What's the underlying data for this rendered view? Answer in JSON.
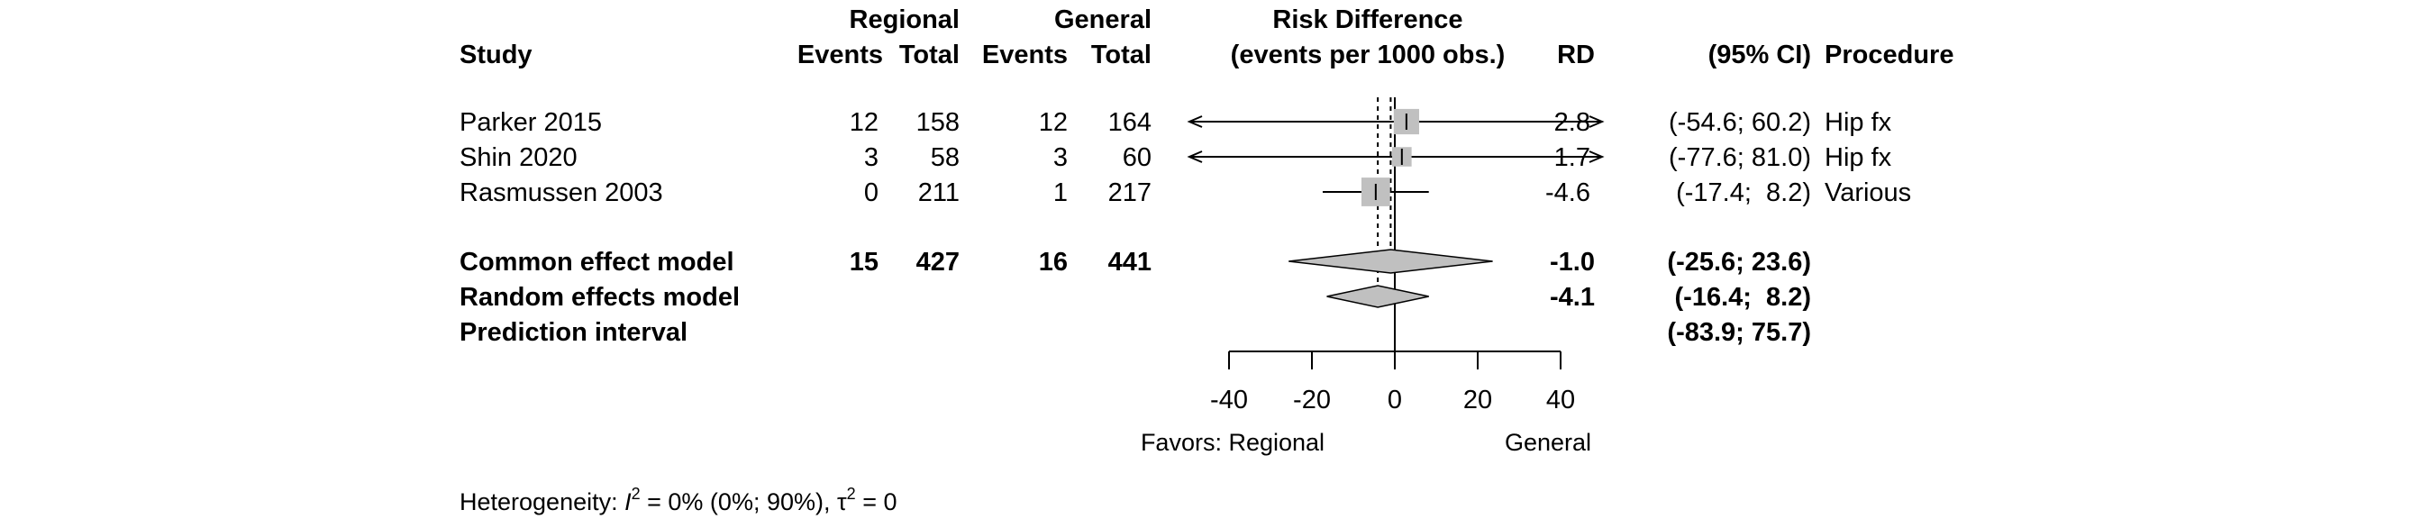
{
  "chart_data": {
    "type": "forest",
    "title": "",
    "headers": {
      "study": "Study",
      "group_exp": "Regional",
      "group_ctrl": "General",
      "events": "Events",
      "total": "Total",
      "effect_line1": "Risk Difference",
      "effect_line2": "(events per 1000 obs.)",
      "rd": "RD",
      "ci": "(95% CI)",
      "procedure": "Procedure"
    },
    "studies": [
      {
        "name": "Parker 2015",
        "events_exp": "12",
        "total_exp": "158",
        "events_ctrl": "12",
        "total_ctrl": "164",
        "rd": 2.8,
        "lower": -54.6,
        "upper": 60.2,
        "rd_text": "2.8",
        "ci_text": "(-54.6; 60.2)",
        "procedure": "Hip fx",
        "weight": 0.35
      },
      {
        "name": "Shin 2020",
        "events_exp": "3",
        "total_exp": "58",
        "events_ctrl": "3",
        "total_ctrl": "60",
        "rd": 1.7,
        "lower": -77.6,
        "upper": 81.0,
        "rd_text": "1.7",
        "ci_text": "(-77.6; 81.0)",
        "procedure": "Hip fx",
        "weight": 0.1
      },
      {
        "name": "Rasmussen 2003",
        "events_exp": "0",
        "total_exp": "211",
        "events_ctrl": "1",
        "total_ctrl": "217",
        "rd": -4.6,
        "lower": -17.4,
        "upper": 8.2,
        "rd_text": "-4.6",
        "ci_text": "(-17.4;  8.2)",
        "procedure": "Various",
        "weight": 0.55
      }
    ],
    "common": {
      "label": "Common effect model",
      "events_exp": "15",
      "total_exp": "427",
      "events_ctrl": "16",
      "total_ctrl": "441",
      "rd": -1.0,
      "lower": -25.6,
      "upper": 23.6,
      "rd_text": "-1.0",
      "ci_text": "(-25.6; 23.6)"
    },
    "random": {
      "label": "Random effects model",
      "rd": -4.1,
      "lower": -16.4,
      "upper": 8.2,
      "rd_text": "-4.1",
      "ci_text": "(-16.4;  8.2)"
    },
    "prediction": {
      "label": "Prediction interval",
      "lower": -83.9,
      "upper": 75.7,
      "ci_text": "(-83.9; 75.7)"
    },
    "axis": {
      "min": -40,
      "max": 40,
      "ticks": [
        -40,
        -20,
        0,
        20,
        40
      ],
      "null_value": 0
    },
    "favors_left": "Favors: Regional",
    "favors_right": "General",
    "heterogeneity": {
      "prefix": "Heterogeneity: ",
      "i2_symbol": "I",
      "sup": "2",
      "i2_value": " = 0% (0%; 90%), ",
      "tau_symbol": "τ",
      "tau_sup": "2",
      "tau_value": " = 0"
    },
    "colors": {
      "square": "#c0c0c0",
      "diamond": "#c0c0c0",
      "line": "#000000"
    }
  }
}
